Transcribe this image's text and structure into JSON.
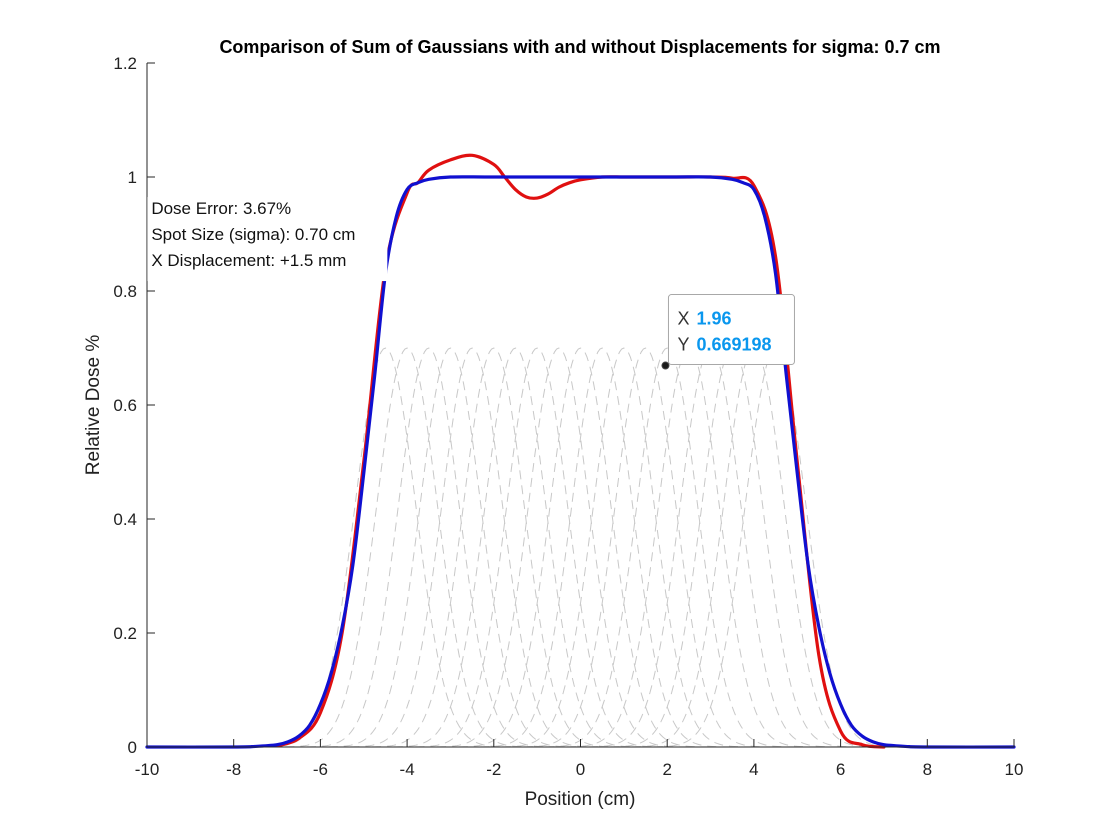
{
  "chart_data": {
    "type": "line",
    "title": "Comparison of Sum of Gaussians with and without Displacements for sigma: 0.7 cm",
    "xlabel": "Position (cm)",
    "ylabel": "Relative Dose %",
    "xlim": [
      -10,
      10
    ],
    "ylim": [
      0,
      1.2
    ],
    "xticks": [
      -10,
      -8,
      -6,
      -4,
      -2,
      0,
      2,
      4,
      6,
      8,
      10
    ],
    "xtick_labels": [
      "-10",
      "-8",
      "-6",
      "-4",
      "-2",
      "0",
      "2",
      "4",
      "6",
      "8",
      "10"
    ],
    "yticks": [
      0,
      0.2,
      0.4,
      0.6,
      0.8,
      1,
      1.2
    ],
    "ytick_labels": [
      "0",
      "0.2",
      "0.4",
      "0.6",
      "0.8",
      "1",
      "1.2"
    ],
    "grid": false,
    "sigma_cm": 0.7,
    "individual_gaussians": {
      "style": "dashed",
      "color": "#c8c8c8",
      "amplitude": 0.7,
      "centers": [
        -4.5,
        -4,
        -3.5,
        -3,
        -2.5,
        -2,
        -1.5,
        -1,
        -0.5,
        0,
        0.5,
        1,
        1.5,
        2,
        2.5,
        3,
        3.5,
        4,
        4.5
      ]
    },
    "series": [
      {
        "color": "#e01010",
        "x": [
          -7,
          -6.5,
          -6,
          -5.5,
          -5,
          -4.5,
          -4,
          -3.75,
          -3.5,
          -3,
          -2.5,
          -2,
          -1.75,
          -1.5,
          -1.25,
          -1,
          -0.75,
          -0.5,
          -0.25,
          0,
          0.5,
          1,
          1.5,
          2,
          2.5,
          3,
          3.5,
          4,
          4.5,
          5,
          5.5,
          6,
          6.5,
          7
        ],
        "values": [
          0.002,
          0.015,
          0.06,
          0.2,
          0.5,
          0.84,
          0.972,
          0.99,
          1.012,
          1.03,
          1.038,
          1.022,
          1.0,
          0.978,
          0.965,
          0.963,
          0.97,
          0.982,
          0.99,
          0.995,
          1.0,
          1.0,
          1.0,
          1.0,
          1.0,
          1.0,
          0.998,
          0.985,
          0.86,
          0.5,
          0.16,
          0.028,
          0.004,
          0.0
        ]
      },
      {
        "color": "#1010d0",
        "x": [
          -10,
          -8,
          -7.5,
          -7,
          -6.75,
          -6.5,
          -6.25,
          -6,
          -5.75,
          -5.5,
          -5.25,
          -5,
          -4.75,
          -4.5,
          -4.25,
          -4,
          -3.75,
          -3.5,
          -3,
          -2,
          0,
          2,
          3,
          3.5,
          3.75,
          4,
          4.25,
          4.5,
          4.75,
          5,
          5.25,
          5.5,
          5.75,
          6,
          6.25,
          6.5,
          6.75,
          7,
          7.5,
          8,
          10
        ],
        "values": [
          0,
          0,
          0.001,
          0.004,
          0.009,
          0.019,
          0.038,
          0.075,
          0.13,
          0.21,
          0.32,
          0.48,
          0.65,
          0.83,
          0.93,
          0.978,
          0.99,
          0.996,
          1.0,
          1.0,
          1.0,
          1.0,
          1.0,
          0.996,
          0.99,
          0.978,
          0.93,
          0.83,
          0.65,
          0.48,
          0.32,
          0.21,
          0.13,
          0.075,
          0.038,
          0.019,
          0.009,
          0.004,
          0.001,
          0,
          0
        ]
      }
    ],
    "annotations": {
      "lines": [
        "Dose Error: 3.67%",
        "Spot Size (sigma): 0.70 cm",
        "X Displacement: +1.5 mm"
      ],
      "anchor_x": -9.9,
      "anchor_y": 0.935
    },
    "datatip": {
      "x": 1.96,
      "y": 0.669198,
      "x_key": "X",
      "y_key": "Y",
      "x_text": "1.96",
      "y_text": "0.669198"
    }
  }
}
